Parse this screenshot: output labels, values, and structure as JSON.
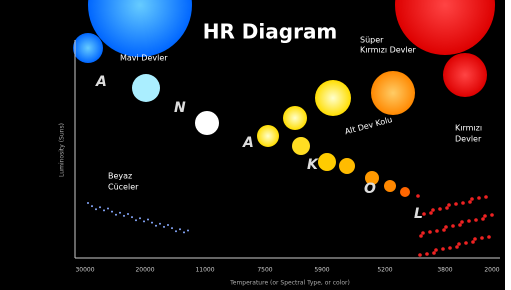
{
  "title": "HR Diagram",
  "labels": {
    "blue_giants": "Mavi Devler",
    "red_supergiants": [
      "Süper",
      "Kırmızı Devler"
    ],
    "red_giants": [
      "Kırmızı",
      "Devler"
    ],
    "subgiant_branch": "Alt Dev Kolu",
    "white_dwarfs": [
      "Beyaz",
      "Cüceler"
    ]
  },
  "main_sequence_letters": [
    "A",
    "N",
    "A",
    "K",
    "O",
    "L"
  ],
  "x_axis": {
    "label": "Temperature (or Spectral Type, or color)",
    "ticks": [
      "30000",
      "20000",
      "11000",
      "7500",
      "5900",
      "5200",
      "3800",
      "2000"
    ]
  },
  "y_axis": {
    "label": "Luminosity (Suns)"
  }
}
